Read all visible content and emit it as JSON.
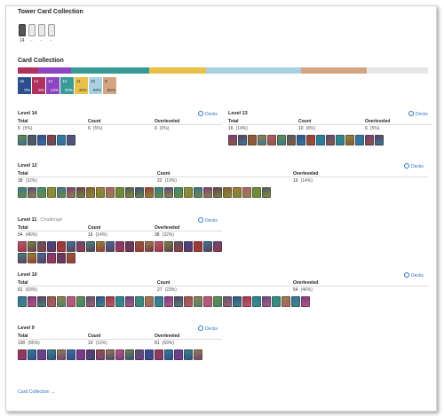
{
  "tower_section": {
    "title": "Tower Card Collection",
    "towers": [
      {
        "name": "tower-unlocked",
        "count": "14",
        "unlocked": true
      },
      {
        "name": "tower-locked",
        "count": "–",
        "unlocked": false
      },
      {
        "name": "tower-locked",
        "count": "–",
        "unlocked": false
      },
      {
        "name": "tower-locked",
        "count": "–",
        "unlocked": false
      }
    ]
  },
  "card_section": {
    "title": "Card Collection",
    "rarity_bar": [
      {
        "color": "#b0305e",
        "fraction": 0.05
      },
      {
        "color": "#8e45c2",
        "fraction": 0.08
      },
      {
        "color": "#3a9a97",
        "fraction": 0.19
      },
      {
        "color": "#e9c04a",
        "fraction": 0.14
      },
      {
        "color": "#a8d2e2",
        "fraction": 0.23
      },
      {
        "color": "#d4a582",
        "fraction": 0.16
      },
      {
        "color": "#e6e6e6",
        "fraction": 0.15
      }
    ],
    "badges": [
      {
        "level": "15",
        "percent": "0%",
        "color": "#2e4d8d"
      },
      {
        "level": "14",
        "percent": "5%",
        "color": "#b0305e"
      },
      {
        "level": "13",
        "percent": "14%",
        "color": "#8e45c2"
      },
      {
        "level": "12",
        "percent": "32%",
        "color": "#3a9a97"
      },
      {
        "level": "11",
        "percent": "46%",
        "color": "#e9c04a"
      },
      {
        "level": "10",
        "percent": "69%",
        "color": "#a8d2e2"
      },
      {
        "level": "9",
        "percent": "85%",
        "color": "#d4a582"
      }
    ]
  },
  "labels": {
    "total": "Total",
    "count": "Count",
    "overleveled": "Overleveled",
    "decks": "Decks",
    "challenge": "Challenge"
  },
  "levels": {
    "l14": {
      "title": "Level 14",
      "total": "6",
      "total_pct": "5%",
      "count": "6",
      "count_pct": "5%",
      "over": "0",
      "over_pct": "0%"
    },
    "l13": {
      "title": "Level 13",
      "total": "16",
      "total_pct": "14%",
      "count": "10",
      "count_pct": "8%",
      "over": "6",
      "over_pct": "5%"
    },
    "l12": {
      "title": "Level 12",
      "total": "38",
      "total_pct": "32%",
      "count": "22",
      "count_pct": "19%",
      "over": "16",
      "over_pct": "14%"
    },
    "l11": {
      "title": "Level 11",
      "total": "54",
      "total_pct": "46%",
      "count": "16",
      "count_pct": "14%",
      "over": "38",
      "over_pct": "32%"
    },
    "l10": {
      "title": "Level 10",
      "total": "81",
      "total_pct": "69%",
      "count": "27",
      "count_pct": "23%",
      "over": "54",
      "over_pct": "46%"
    },
    "l9": {
      "title": "Level 9",
      "total": "100",
      "total_pct": "85%",
      "count": "19",
      "count_pct": "16%",
      "over": "81",
      "over_pct": "69%"
    }
  },
  "footer": {
    "link": "Card Collection →"
  }
}
